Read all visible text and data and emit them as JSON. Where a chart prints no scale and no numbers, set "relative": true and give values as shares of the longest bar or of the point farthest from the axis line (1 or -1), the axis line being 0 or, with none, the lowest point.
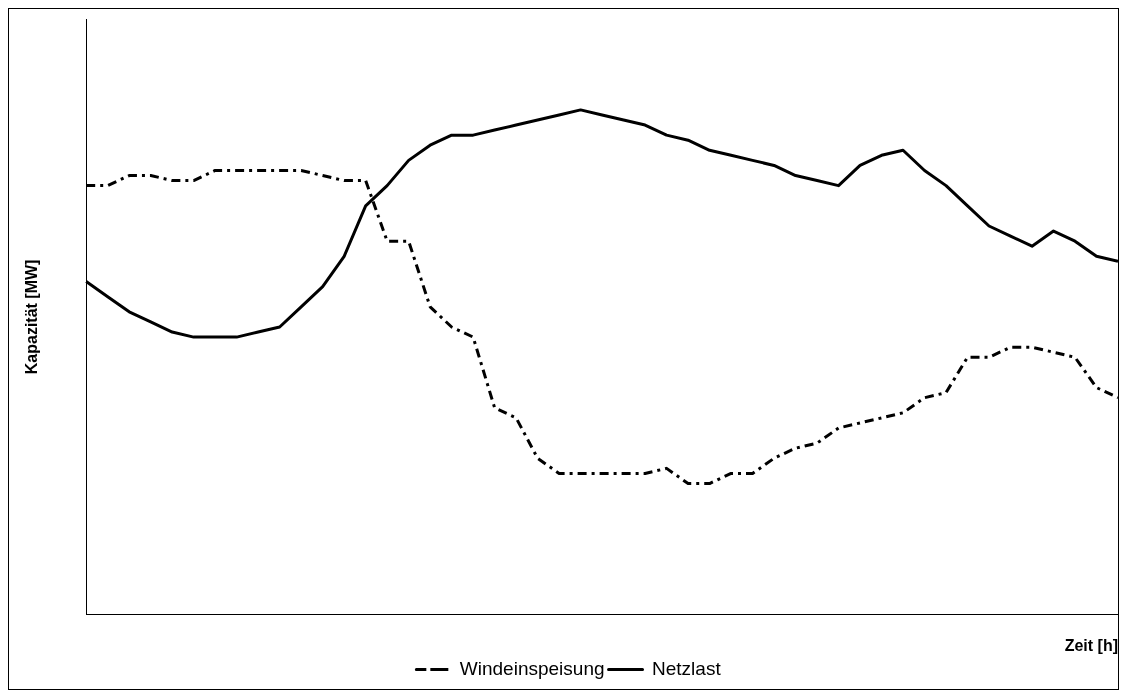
{
  "chart_data": {
    "type": "line",
    "relative": true,
    "xlabel": "Zeit [h]",
    "ylabel": "Kapazität [MW]",
    "legend": "bottom",
    "grid": false,
    "marker": "none",
    "categories": [
      null,
      null,
      null,
      null,
      null,
      null,
      null,
      null,
      null,
      null,
      null,
      null,
      null,
      null,
      null,
      null,
      null,
      null,
      null,
      null,
      null,
      null,
      null,
      null,
      null,
      null,
      null,
      null,
      null,
      null,
      null,
      null,
      null,
      null,
      null,
      null,
      null,
      null,
      null,
      null,
      null,
      null,
      null,
      null,
      null,
      null,
      null,
      null,
      null
    ],
    "series": [
      {
        "name": "Windeinspeisung",
        "color": "#000000",
        "line_style": "dashdot",
        "values": [
          0.85,
          0.85,
          0.87,
          0.87,
          0.86,
          0.86,
          0.88,
          0.88,
          0.88,
          0.88,
          0.88,
          0.87,
          0.86,
          0.86,
          0.74,
          0.74,
          0.61,
          0.57,
          0.55,
          0.41,
          0.39,
          0.31,
          0.28,
          0.28,
          0.28,
          0.28,
          0.28,
          0.29,
          0.26,
          0.26,
          0.28,
          0.28,
          0.31,
          0.33,
          0.34,
          0.37,
          0.38,
          0.39,
          0.4,
          0.43,
          0.44,
          0.51,
          0.51,
          0.53,
          0.53,
          0.52,
          0.51,
          0.45,
          0.43
        ]
      },
      {
        "name": "Netzlast",
        "color": "#000000",
        "line_style": "solid",
        "values": [
          0.66,
          0.63,
          0.6,
          0.58,
          0.56,
          0.55,
          0.55,
          0.55,
          0.56,
          0.57,
          0.61,
          0.65,
          0.71,
          0.81,
          0.85,
          0.9,
          0.93,
          0.95,
          0.95,
          0.96,
          0.97,
          0.98,
          0.99,
          1,
          0.99,
          0.98,
          0.97,
          0.95,
          0.94,
          0.92,
          0.91,
          0.9,
          0.89,
          0.87,
          0.86,
          0.85,
          0.89,
          0.91,
          0.92,
          0.88,
          0.85,
          0.81,
          0.77,
          0.75,
          0.73,
          0.76,
          0.74,
          0.71,
          0.7
        ]
      }
    ]
  }
}
